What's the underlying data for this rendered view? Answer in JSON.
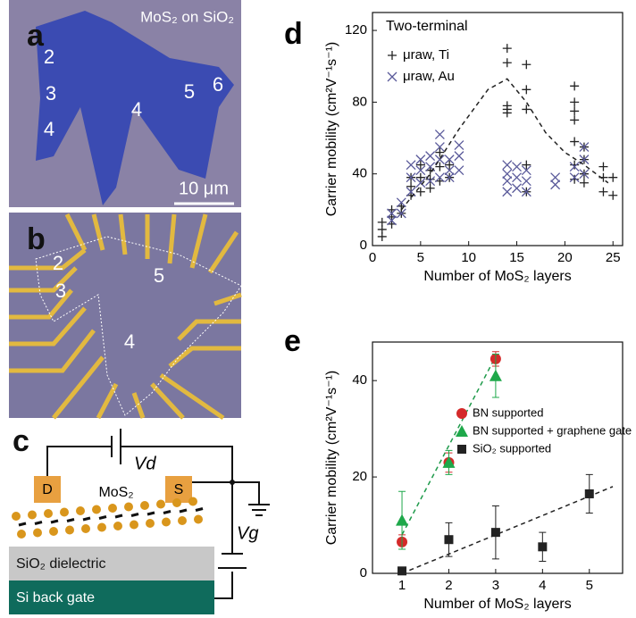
{
  "panels": {
    "a": {
      "label": "a",
      "title": "MoS₂ on SiO₂",
      "regions": [
        "2",
        "3",
        "4",
        "4",
        "5",
        "6"
      ],
      "scale_bar": "10 μm"
    },
    "b": {
      "label": "b",
      "regions": [
        "2",
        "3",
        "5",
        "4"
      ]
    },
    "c": {
      "label": "c",
      "drain": "D",
      "source": "S",
      "material": "MoS₂",
      "drain_voltage": "Vd",
      "gate_voltage": "Vg",
      "dielectric": "SiO₂ dielectric",
      "gate": "Si back gate"
    }
  },
  "chart_data": [
    {
      "type": "scatter",
      "panel_label": "d",
      "annotation": "Two-terminal",
      "xlabel": "Number of MoS₂ layers",
      "ylabel": "Carrier mobility (cm²V⁻¹s⁻¹)",
      "xlim": [
        0,
        26
      ],
      "ylim": [
        0,
        130
      ],
      "xticks": [
        0,
        5,
        10,
        15,
        20,
        25
      ],
      "yticks": [
        0,
        40,
        80,
        120
      ],
      "legend": "upper left",
      "series": [
        {
          "name": "μraw, Ti",
          "color": "#222222",
          "marker": "plus",
          "x": [
            1,
            1,
            1,
            2,
            2,
            2,
            3,
            3,
            4,
            4,
            4,
            5,
            5,
            5,
            6,
            6,
            6,
            7,
            7,
            7,
            8,
            8,
            14,
            14,
            14,
            14,
            14,
            16,
            16,
            16,
            16,
            16,
            21,
            21,
            21,
            21,
            21,
            21,
            21,
            22,
            22,
            22,
            22,
            24,
            24,
            24,
            25,
            25
          ],
          "y": [
            5,
            9,
            13,
            12,
            16,
            20,
            18,
            22,
            28,
            33,
            38,
            30,
            38,
            45,
            32,
            37,
            42,
            36,
            44,
            52,
            38,
            45,
            74,
            76,
            78,
            102,
            110,
            30,
            45,
            76,
            87,
            101,
            37,
            45,
            58,
            70,
            75,
            80,
            89,
            35,
            40,
            48,
            55,
            30,
            38,
            44,
            28,
            38
          ]
        },
        {
          "name": "μraw, Au",
          "color": "#5a5a9a",
          "marker": "x",
          "x": [
            2,
            2,
            3,
            3,
            4,
            4,
            4,
            5,
            5,
            5,
            6,
            6,
            6,
            7,
            7,
            7,
            7,
            8,
            8,
            8,
            9,
            9,
            9,
            14,
            14,
            14,
            14,
            15,
            15,
            15,
            16,
            16,
            16,
            19,
            19,
            21,
            21,
            22,
            22,
            22
          ],
          "y": [
            14,
            18,
            18,
            24,
            30,
            38,
            45,
            35,
            42,
            48,
            36,
            44,
            50,
            38,
            48,
            55,
            62,
            38,
            42,
            48,
            42,
            50,
            56,
            30,
            36,
            40,
            45,
            32,
            38,
            44,
            30,
            36,
            42,
            34,
            38,
            38,
            44,
            40,
            48,
            55
          ]
        },
        {
          "color": "#222222",
          "line": "dashed",
          "x": [
            3,
            6,
            9,
            12,
            14,
            16,
            18,
            20,
            22,
            24.5
          ],
          "y": [
            20,
            40,
            65,
            87,
            93,
            80,
            63,
            52,
            45,
            35
          ]
        }
      ]
    },
    {
      "type": "scatter",
      "panel_label": "e",
      "xlabel": "Number of MoS₂ layers",
      "ylabel": "Carrier mobility (cm²V⁻¹s⁻¹)",
      "xlim": [
        0.37,
        5.71
      ],
      "ylim": [
        0,
        48
      ],
      "xticks": [
        1,
        2,
        3,
        4,
        5
      ],
      "yticks": [
        0,
        20,
        40
      ],
      "legend": "center right",
      "series": [
        {
          "color": "#1e9a4a",
          "line": "dashed",
          "x": [
            1,
            3
          ],
          "y": [
            8,
            45
          ]
        },
        {
          "color": "#222222",
          "line": "dashed",
          "x": [
            1,
            5.5
          ],
          "y": [
            0,
            18
          ]
        },
        {
          "name": "BN supported",
          "color": "#d42a2a",
          "marker": "circle",
          "x": [
            1,
            2,
            3
          ],
          "y": [
            6.5,
            23,
            44.5
          ],
          "errors": [
            1.5,
            2,
            1.5
          ]
        },
        {
          "name": "BN supported + graphene gate",
          "color": "#1ea84a",
          "marker": "triangle",
          "x": [
            1,
            2,
            3
          ],
          "y": [
            11,
            23,
            41
          ],
          "errors": [
            6,
            2.5,
            4.5
          ]
        },
        {
          "name": "SiO₂ supported",
          "color": "#222222",
          "marker": "square",
          "x": [
            1,
            2,
            3,
            4,
            5
          ],
          "y": [
            0.5,
            7,
            8.5,
            5.5,
            16.5
          ],
          "errors": [
            0,
            3.5,
            5.5,
            3,
            4
          ]
        }
      ]
    }
  ]
}
